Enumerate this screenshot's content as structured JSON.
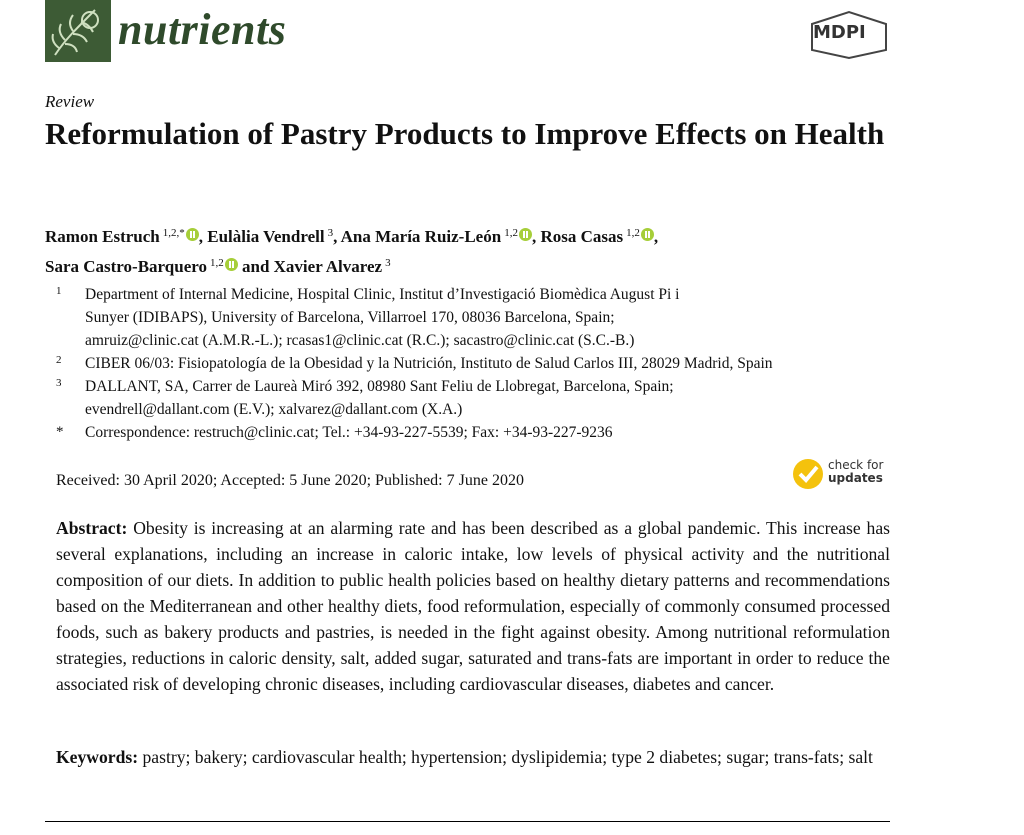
{
  "header": {
    "journal": "nutrients",
    "publisher": "MDPI"
  },
  "article_type": "Review",
  "title": "Reformulation of Pastry Products to Improve Effects on Health",
  "authors": {
    "separator": ",",
    "conjunction": "and",
    "list": [
      {
        "name": "Ramon Estruch",
        "affiliations": "1,2,*"
      },
      {
        "name": "Eulàlia Vendrell",
        "affiliations": "3"
      },
      {
        "name": "Ana María Ruiz-León",
        "affiliations": "1,2"
      },
      {
        "name": "Rosa Casas",
        "affiliations": "1,2"
      },
      {
        "name": "Sara Castro-Barquero",
        "affiliations": "1,2"
      },
      {
        "name": "Xavier Alvarez",
        "affiliations": "3"
      }
    ]
  },
  "affiliations": [
    {
      "marker": "1",
      "lines": [
        "Department of Internal Medicine, Hospital Clinic, Institut d’Investigació Biomèdica August Pi i",
        "Sunyer (IDIBAPS), University of Barcelona, Villarroel 170, 08036 Barcelona, Spain;",
        "amruiz@clinic.cat (A.M.R.-L.); rcasas1@clinic.cat (R.C.); sacastro@clinic.cat (S.C.-B.)"
      ]
    },
    {
      "marker": "2",
      "lines": [
        "CIBER 06/03: Fisiopatología de la Obesidad y la Nutrición, Instituto de Salud Carlos III, 28029 Madrid, Spain"
      ]
    },
    {
      "marker": "3",
      "lines": [
        "DALLANT, SA, Carrer de Laureà Miró 392, 08980 Sant Feliu de Llobregat, Barcelona, Spain;",
        "evendrell@dallant.com (E.V.); xalvarez@dallant.com (X.A.)"
      ]
    },
    {
      "marker": "*",
      "lines": [
        "Correspondence: restruch@clinic.cat; Tel.: +34-93-227-5539; Fax: +34-93-227-9236"
      ]
    }
  ],
  "dates": "Received: 30 April 2020; Accepted: 5 June 2020; Published: 7 June 2020",
  "check_for_updates": {
    "line1": "check for",
    "line2": "updates"
  },
  "abstract": {
    "label": "Abstract:",
    "text": "Obesity is increasing at an alarming rate and has been described as a global pandemic. This increase has several explanations, including an increase in caloric intake, low levels of physical activity and the nutritional composition of our diets. In addition to public health policies based on healthy dietary patterns and recommendations based on the Mediterranean and other healthy diets, food reformulation, especially of commonly consumed processed foods, such as bakery products and pastries, is needed in the fight against obesity. Among nutritional reformulation strategies, reductions in caloric density, salt, added sugar, saturated and trans-fats are important in order to reduce the associated risk of developing chronic diseases, including cardiovascular diseases, diabetes and cancer."
  },
  "keywords": {
    "label": "Keywords:",
    "text": "pastry; bakery; cardiovascular health; hypertension; dyslipidemia; type 2 diabetes; sugar; trans-fats; salt"
  }
}
